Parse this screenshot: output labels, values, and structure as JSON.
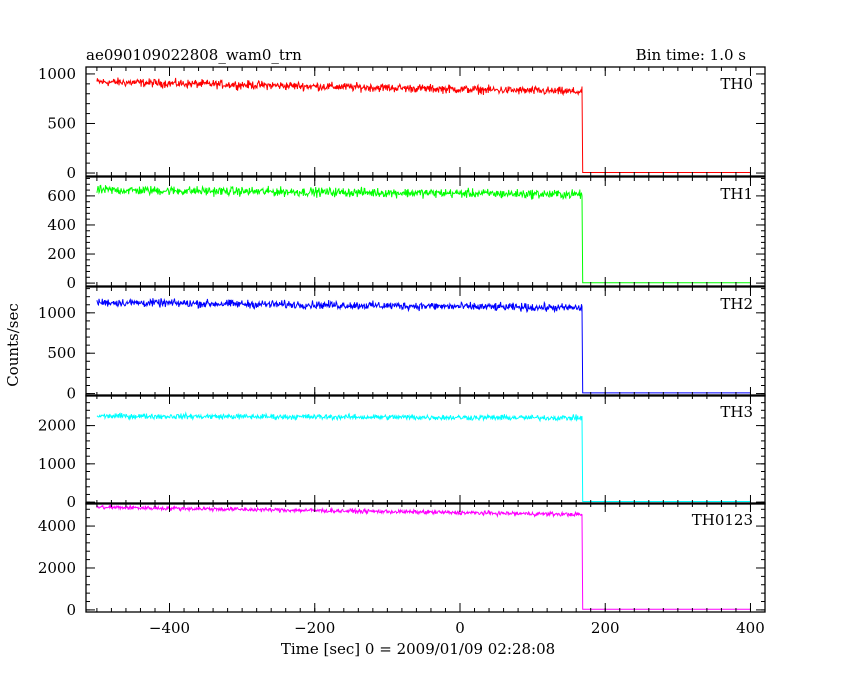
{
  "header": {
    "title": "ae090109022808_wam0_trn",
    "bin_time": "Bin time: 1.0 s"
  },
  "chart_data": {
    "type": "line",
    "xlabel": "Time [sec] 0 = 2009/01/09 02:28:08",
    "ylabel": "Counts/sec",
    "xlim": [
      -515,
      420
    ],
    "x_ticks": [
      -400,
      -200,
      0,
      200,
      400
    ],
    "x_tick_labels": [
      "−400",
      "−200",
      "0",
      "200",
      "400"
    ],
    "drop_time": 168,
    "x_start": -500,
    "x_end": 400,
    "panels": [
      {
        "name": "TH0",
        "color": "#ff0000",
        "ylim": [
          -30,
          1070
        ],
        "y_ticks": [
          0,
          500,
          1000
        ],
        "y_tick_labels": [
          "0",
          "500",
          "1000"
        ],
        "level_start": 920,
        "level_end": 820,
        "noise": 30,
        "after": 5
      },
      {
        "name": "TH1",
        "color": "#00ff00",
        "ylim": [
          -20,
          730
        ],
        "y_ticks": [
          0,
          200,
          400,
          600
        ],
        "y_tick_labels": [
          "0",
          "200",
          "400",
          "600"
        ],
        "level_start": 640,
        "level_end": 610,
        "noise": 22,
        "after": 3
      },
      {
        "name": "TH2",
        "color": "#0000ff",
        "ylim": [
          -30,
          1320
        ],
        "y_ticks": [
          0,
          500,
          1000
        ],
        "y_tick_labels": [
          "0",
          "500",
          "1000"
        ],
        "level_start": 1130,
        "level_end": 1060,
        "noise": 35,
        "after": 8
      },
      {
        "name": "TH3",
        "color": "#00ffff",
        "ylim": [
          -50,
          2800
        ],
        "y_ticks": [
          0,
          1000,
          2000
        ],
        "y_tick_labels": [
          "0",
          "1000",
          "2000"
        ],
        "level_start": 2250,
        "level_end": 2200,
        "noise": 50,
        "after": 15
      },
      {
        "name": "TH0123",
        "color": "#ff00ff",
        "ylim": [
          -100,
          5100
        ],
        "y_ticks": [
          0,
          2000,
          4000
        ],
        "y_tick_labels": [
          "0",
          "2000",
          "4000"
        ],
        "level_start": 4900,
        "level_end": 4550,
        "noise": 70,
        "after": 30
      }
    ]
  }
}
